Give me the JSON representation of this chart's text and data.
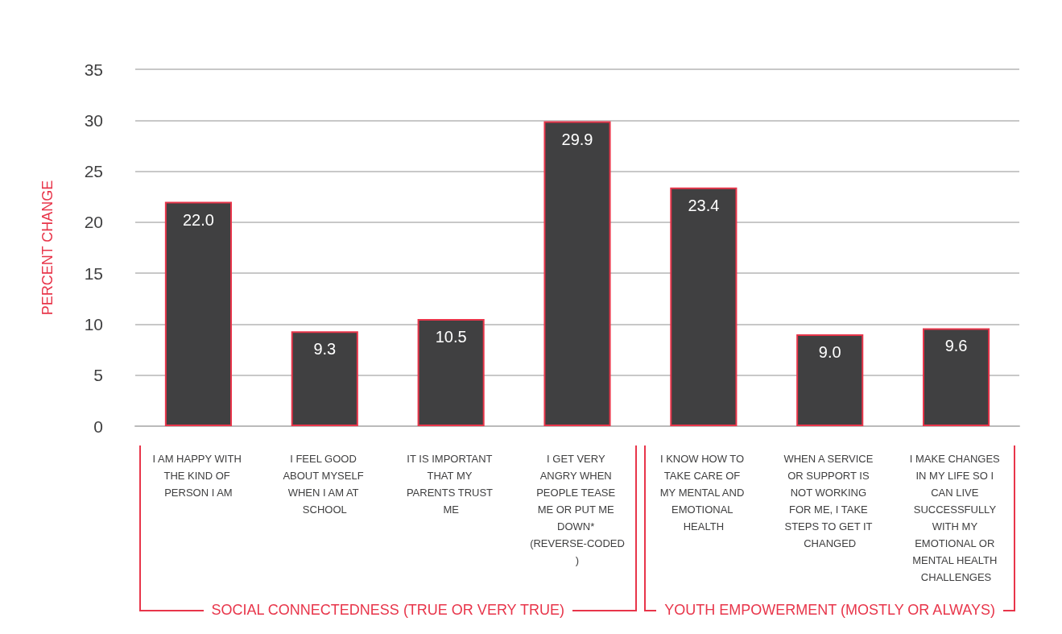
{
  "chart_data": {
    "type": "bar",
    "ylabel": "PERCENT CHANGE",
    "categories": [
      "I AM HAPPY WITH THE KIND OF PERSON I AM",
      "I FEEL GOOD ABOUT MYSELF WHEN I AM AT SCHOOL",
      "IT IS IMPORTANT THAT MY PARENTS TRUST ME",
      "I GET VERY ANGRY WHEN PEOPLE TEASE ME OR PUT ME DOWN* (REVERSE-CODED)",
      "I KNOW HOW TO TAKE CARE OF MY MENTAL AND EMOTIONAL HEALTH",
      "WHEN A SERVICE OR SUPPORT IS NOT WORKING FOR ME, I TAKE STEPS TO GET IT CHANGED",
      "I MAKE CHANGES IN MY LIFE SO I CAN LIVE SUCCESSFULLY WITH MY EMOTIONAL OR MENTAL HEALTH CHALLENGES"
    ],
    "values": [
      22.0,
      9.3,
      10.5,
      29.9,
      23.4,
      9.0,
      9.6
    ],
    "color": "#404041",
    "value_labels": [
      "22.0",
      "9.3",
      "10.5",
      "29.9",
      "23.4",
      "9.0",
      "9.6"
    ],
    "ylim": [
      0,
      35
    ],
    "yticks": [
      0,
      5,
      10,
      15,
      20,
      25,
      30,
      35
    ],
    "grid": "y",
    "annotations": [
      "SOCIAL CONNECTEDNESS (TRUE OR VERY TRUE)",
      "YOUTH EMPOWERMENT (MOSTLY OR ALWAYS)"
    ]
  }
}
